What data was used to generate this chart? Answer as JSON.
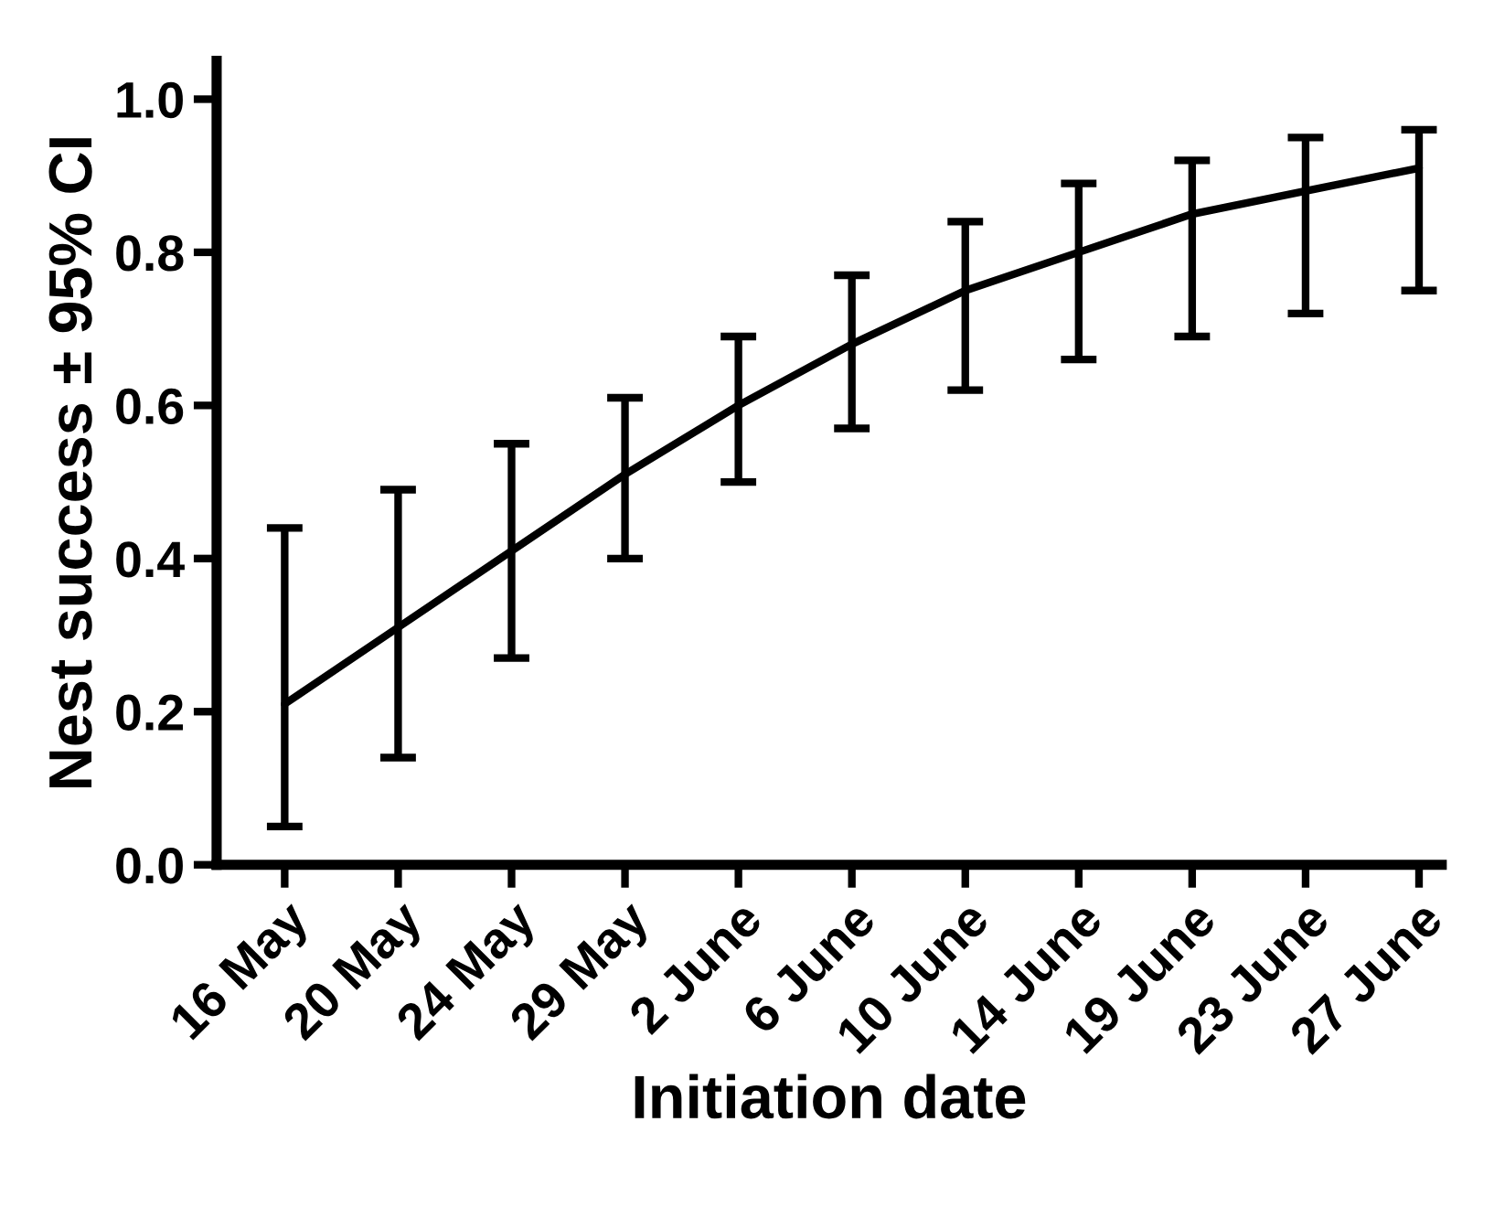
{
  "chart_data": {
    "type": "line",
    "xlabel": "Initiation date",
    "ylabel": "Nest success ± 95% CI",
    "categories": [
      "16 May",
      "20 May",
      "24 May",
      "29 May",
      "2 June",
      "6 June",
      "10 June",
      "14 June",
      "19 June",
      "23 June",
      "27 June"
    ],
    "series": [
      {
        "color": "#000000",
        "values": [
          0.21,
          0.31,
          0.41,
          0.51,
          0.6,
          0.68,
          0.75,
          0.8,
          0.85,
          0.88,
          0.91
        ],
        "errors": [
          [
            0.05,
            0.44
          ],
          [
            0.14,
            0.49
          ],
          [
            0.27,
            0.55
          ],
          [
            0.4,
            0.61
          ],
          [
            0.5,
            0.69
          ],
          [
            0.57,
            0.77
          ],
          [
            0.62,
            0.84
          ],
          [
            0.66,
            0.89
          ],
          [
            0.69,
            0.92
          ],
          [
            0.72,
            0.95
          ],
          [
            0.75,
            0.96
          ]
        ]
      }
    ],
    "ylim": [
      0,
      1.05
    ],
    "yticks": [
      {
        "value": 0,
        "label": "0.0"
      },
      0.2,
      0.4,
      0.6,
      0.8,
      {
        "value": 1,
        "label": "1.0"
      }
    ],
    "grid": false,
    "marker": "none",
    "line_style": "solid"
  }
}
